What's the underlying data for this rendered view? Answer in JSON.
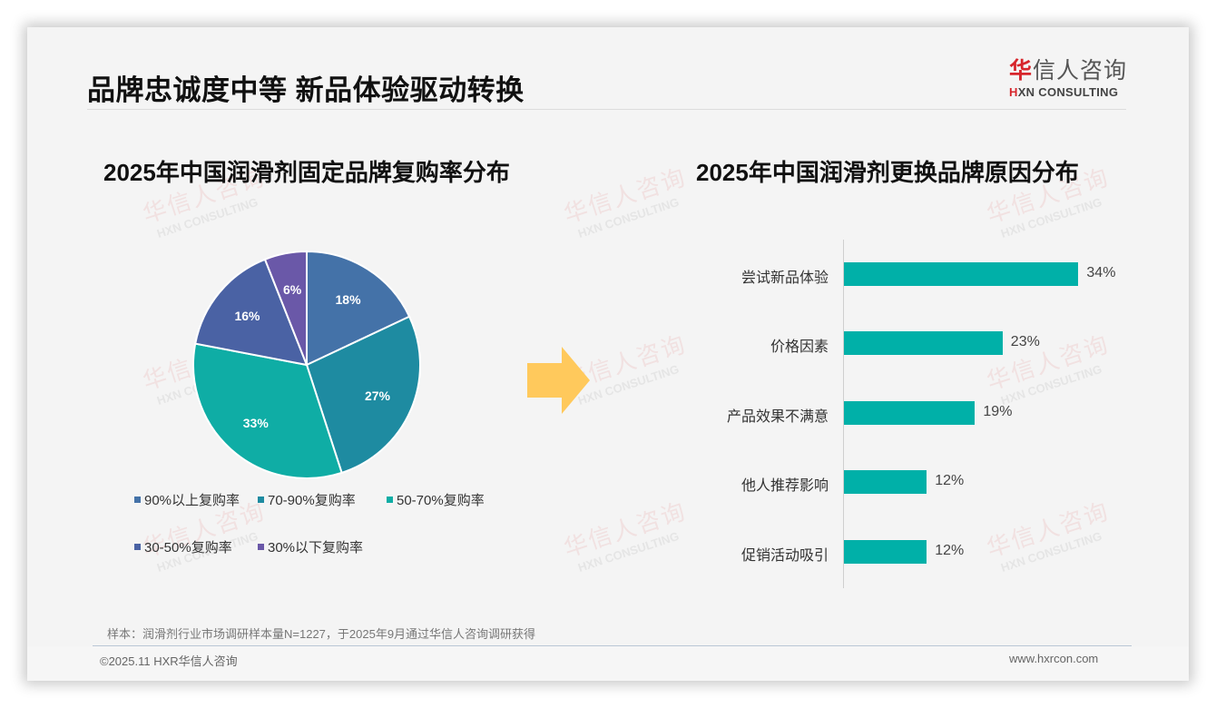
{
  "header": {
    "title": "品牌忠诚度中等 新品体验驱动转换",
    "logo_cn_first": "华",
    "logo_cn_rest": "信人咨询",
    "logo_en_first": "H",
    "logo_en_rest": "XN CONSULTING"
  },
  "watermark": {
    "cn": "华信人咨询",
    "en": "HXN CONSULTING"
  },
  "pie_chart": {
    "title": "2025年中国润滑剂固定品牌复购率分布"
  },
  "bar_chart": {
    "title": "2025年中国润滑剂更换品牌原因分布"
  },
  "footer": {
    "note": "样本：润滑剂行业市场调研样本量N=1227，于2025年9月通过华信人咨询调研获得",
    "copyright": "©2025.11 HXR华信人咨询",
    "website": "www.hxrcon.com"
  },
  "colors": {
    "pie": [
      "#4472a8",
      "#1e8ba1",
      "#0fada5",
      "#4a62a4",
      "#6a58a8"
    ],
    "bar": "#00b0a8",
    "arrow": "#ffc95c",
    "logo_red": "#d7262c"
  },
  "chart_data": [
    {
      "type": "pie",
      "title": "2025年中国润滑剂固定品牌复购率分布",
      "categories": [
        "90%以上复购率",
        "70-90%复购率",
        "50-70%复购率",
        "30-50%复购率",
        "30%以下复购率"
      ],
      "values": [
        18,
        27,
        33,
        16,
        6
      ],
      "labels": [
        "18%",
        "27%",
        "33%",
        "16%",
        "6%"
      ],
      "legend_position": "bottom",
      "start_angle": "12 o'clock, clockwise"
    },
    {
      "type": "bar",
      "orientation": "horizontal",
      "title": "2025年中国润滑剂更换品牌原因分布",
      "categories": [
        "尝试新品体验",
        "价格因素",
        "产品效果不满意",
        "他人推荐影响",
        "促销活动吸引"
      ],
      "values": [
        34,
        23,
        19,
        12,
        12
      ],
      "labels": [
        "34%",
        "23%",
        "19%",
        "12%",
        "12%"
      ],
      "xlabel": "",
      "ylabel": "",
      "grid": false
    }
  ]
}
